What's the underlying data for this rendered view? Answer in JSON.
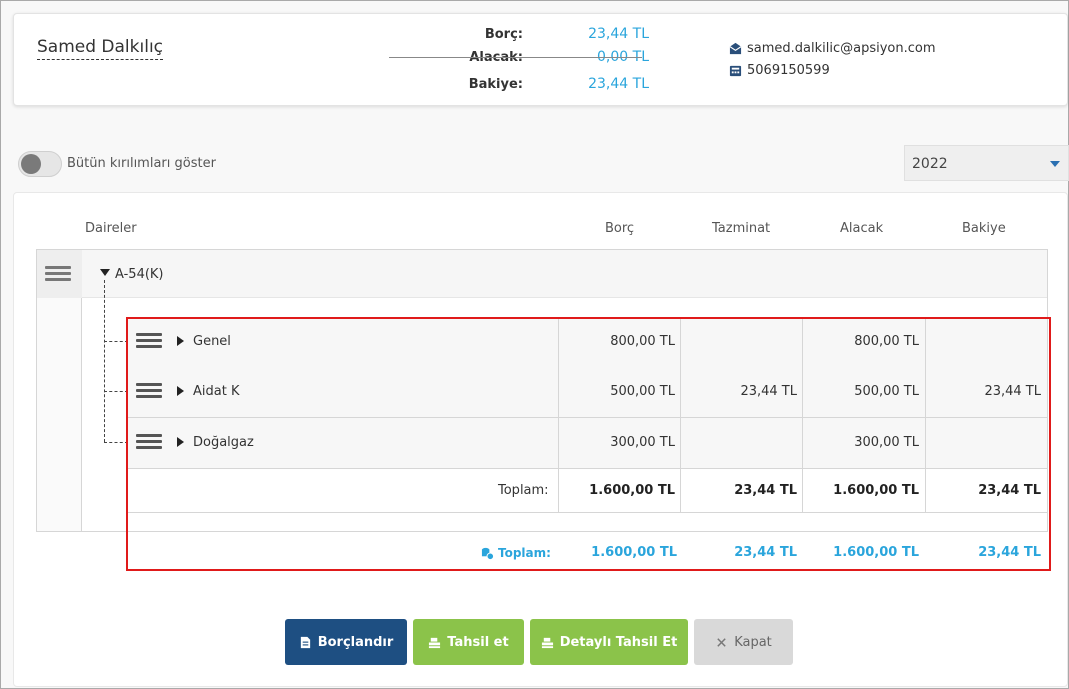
{
  "header": {
    "user_name": "Samed Dalkılıç",
    "summary": {
      "borc_label": "Borç:",
      "borc_value": "23,44 TL",
      "alacak_label": "Alacak:",
      "alacak_value": "0,00 TL",
      "bakiye_label": "Bakiye:",
      "bakiye_value": "23,44 TL"
    },
    "email": "samed.dalkilic@apsiyon.com",
    "phone": "5069150599"
  },
  "filters": {
    "toggle_label": "Bütün kırılımları göster",
    "toggle_on": false,
    "year": "2022"
  },
  "table": {
    "columns": {
      "daireler": "Daireler",
      "borc": "Borç",
      "tazminat": "Tazminat",
      "alacak": "Alacak",
      "bakiye": "Bakiye"
    },
    "root": "A-54(K)",
    "rows": [
      {
        "name": "Genel",
        "borc": "800,00 TL",
        "tazminat": "",
        "alacak": "800,00 TL",
        "bakiye": ""
      },
      {
        "name": "Aidat K",
        "borc": "500,00 TL",
        "tazminat": "23,44 TL",
        "alacak": "500,00 TL",
        "bakiye": "23,44 TL"
      },
      {
        "name": "Doğalgaz",
        "borc": "300,00 TL",
        "tazminat": "",
        "alacak": "300,00 TL",
        "bakiye": ""
      }
    ],
    "subtotal": {
      "label": "Toplam:",
      "borc": "1.600,00 TL",
      "tazminat": "23,44 TL",
      "alacak": "1.600,00 TL",
      "bakiye": "23,44 TL"
    },
    "grand_total": {
      "label": "Toplam:",
      "borc": "1.600,00 TL",
      "tazminat": "23,44 TL",
      "alacak": "1.600,00 TL",
      "bakiye": "23,44 TL"
    }
  },
  "buttons": {
    "borclandir": "Borçlandır",
    "tahsil_et": "Tahsil et",
    "detayli_tahsil_et": "Detaylı Tahsil Et",
    "kapat": "Kapat"
  },
  "colors": {
    "accent_blue": "#2aa5dc",
    "primary_button": "#1e4f82",
    "success_button": "#8bc34a",
    "highlight_border": "#e01a1a"
  }
}
